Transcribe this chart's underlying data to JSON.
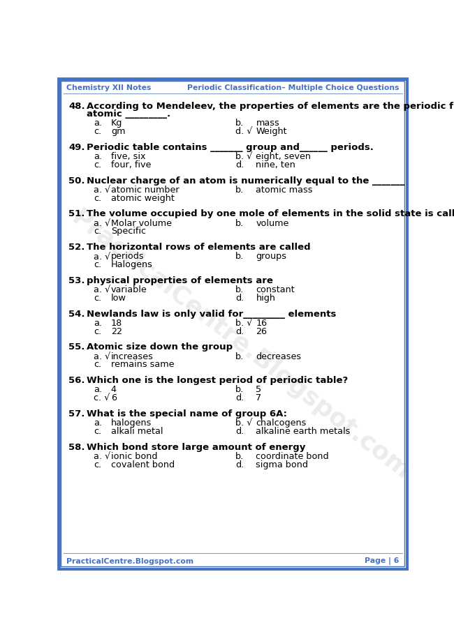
{
  "header_left": "Chemistry XII Notes",
  "header_right": "Periodic Classification– Multiple Choice Questions",
  "footer_left": "PracticalCentre.Blogspot.com",
  "footer_right": "Page | 6",
  "header_color": "#4472C4",
  "border_color": "#4472C4",
  "bg_color": "#FFFFFF",
  "watermark_text": "PracticalCentre.Blogspot.com",
  "questions": [
    {
      "num": "48.",
      "q_lines": [
        "According to Mendeleev, the properties of elements are the periodic function of their",
        "atomic _________."
      ],
      "opts": [
        [
          "a.",
          "Kg",
          "b.",
          "mass"
        ],
        [
          "c.",
          "gm",
          "d. √",
          "Weight"
        ]
      ]
    },
    {
      "num": "49.",
      "q_lines": [
        "Periodic table contains _______ group and______ periods."
      ],
      "opts": [
        [
          "a.",
          "five, six",
          "b. √",
          "eight, seven"
        ],
        [
          "c.",
          "four, five",
          "d.",
          "nine, ten"
        ]
      ]
    },
    {
      "num": "50.",
      "q_lines": [
        "Nuclear charge of an atom is numerically equal to the _______"
      ],
      "opts": [
        [
          "a. √",
          "atomic number",
          "b.",
          "atomic mass"
        ],
        [
          "c.",
          "atomic weight",
          "",
          ""
        ]
      ]
    },
    {
      "num": "51.",
      "q_lines": [
        "The volume occupied by one mole of elements in the solid state is called?"
      ],
      "opts": [
        [
          "a. √",
          "Molar volume",
          "b.",
          "volume"
        ],
        [
          "c.",
          "Specific",
          "",
          ""
        ]
      ]
    },
    {
      "num": "52.",
      "q_lines": [
        "The horizontal rows of elements are called"
      ],
      "opts": [
        [
          "a. √",
          "periods",
          "b.",
          "groups"
        ],
        [
          "c.",
          "Halogens",
          "",
          ""
        ]
      ]
    },
    {
      "num": "53.",
      "q_lines": [
        "physical properties of elements are"
      ],
      "opts": [
        [
          "a. √",
          "variable",
          "b.",
          "constant"
        ],
        [
          "c.",
          "low",
          "d.",
          "high"
        ]
      ]
    },
    {
      "num": "54.",
      "q_lines": [
        "Newlands law is only valid for_________ elements"
      ],
      "opts": [
        [
          "a.",
          "18",
          "b. √",
          "16"
        ],
        [
          "c.",
          "22",
          "d.",
          "26"
        ]
      ]
    },
    {
      "num": "55.",
      "q_lines": [
        "Atomic size down the group"
      ],
      "opts": [
        [
          "a. √",
          "increases",
          "b.",
          "decreases"
        ],
        [
          "c.",
          "remains same",
          "",
          ""
        ]
      ]
    },
    {
      "num": "56.",
      "q_lines": [
        "Which one is the longest period of periodic table?"
      ],
      "opts": [
        [
          "a.",
          "4",
          "b.",
          "5"
        ],
        [
          "c. √",
          "6",
          "d.",
          "7"
        ]
      ]
    },
    {
      "num": "57.",
      "q_lines": [
        "What is the special name of group 6A:"
      ],
      "opts": [
        [
          "a.",
          "halogens",
          "b. √",
          "chalcogens"
        ],
        [
          "c.",
          "alkali metal",
          "d.",
          "alkaline earth metals"
        ]
      ]
    },
    {
      "num": "58.",
      "q_lines": [
        "Which bond store large amount of energy"
      ],
      "opts": [
        [
          "a. √",
          "ionic bond",
          "b.",
          "coordinate bond"
        ],
        [
          "c.",
          "covalent bond",
          "d.",
          "sigma bond"
        ]
      ]
    }
  ]
}
